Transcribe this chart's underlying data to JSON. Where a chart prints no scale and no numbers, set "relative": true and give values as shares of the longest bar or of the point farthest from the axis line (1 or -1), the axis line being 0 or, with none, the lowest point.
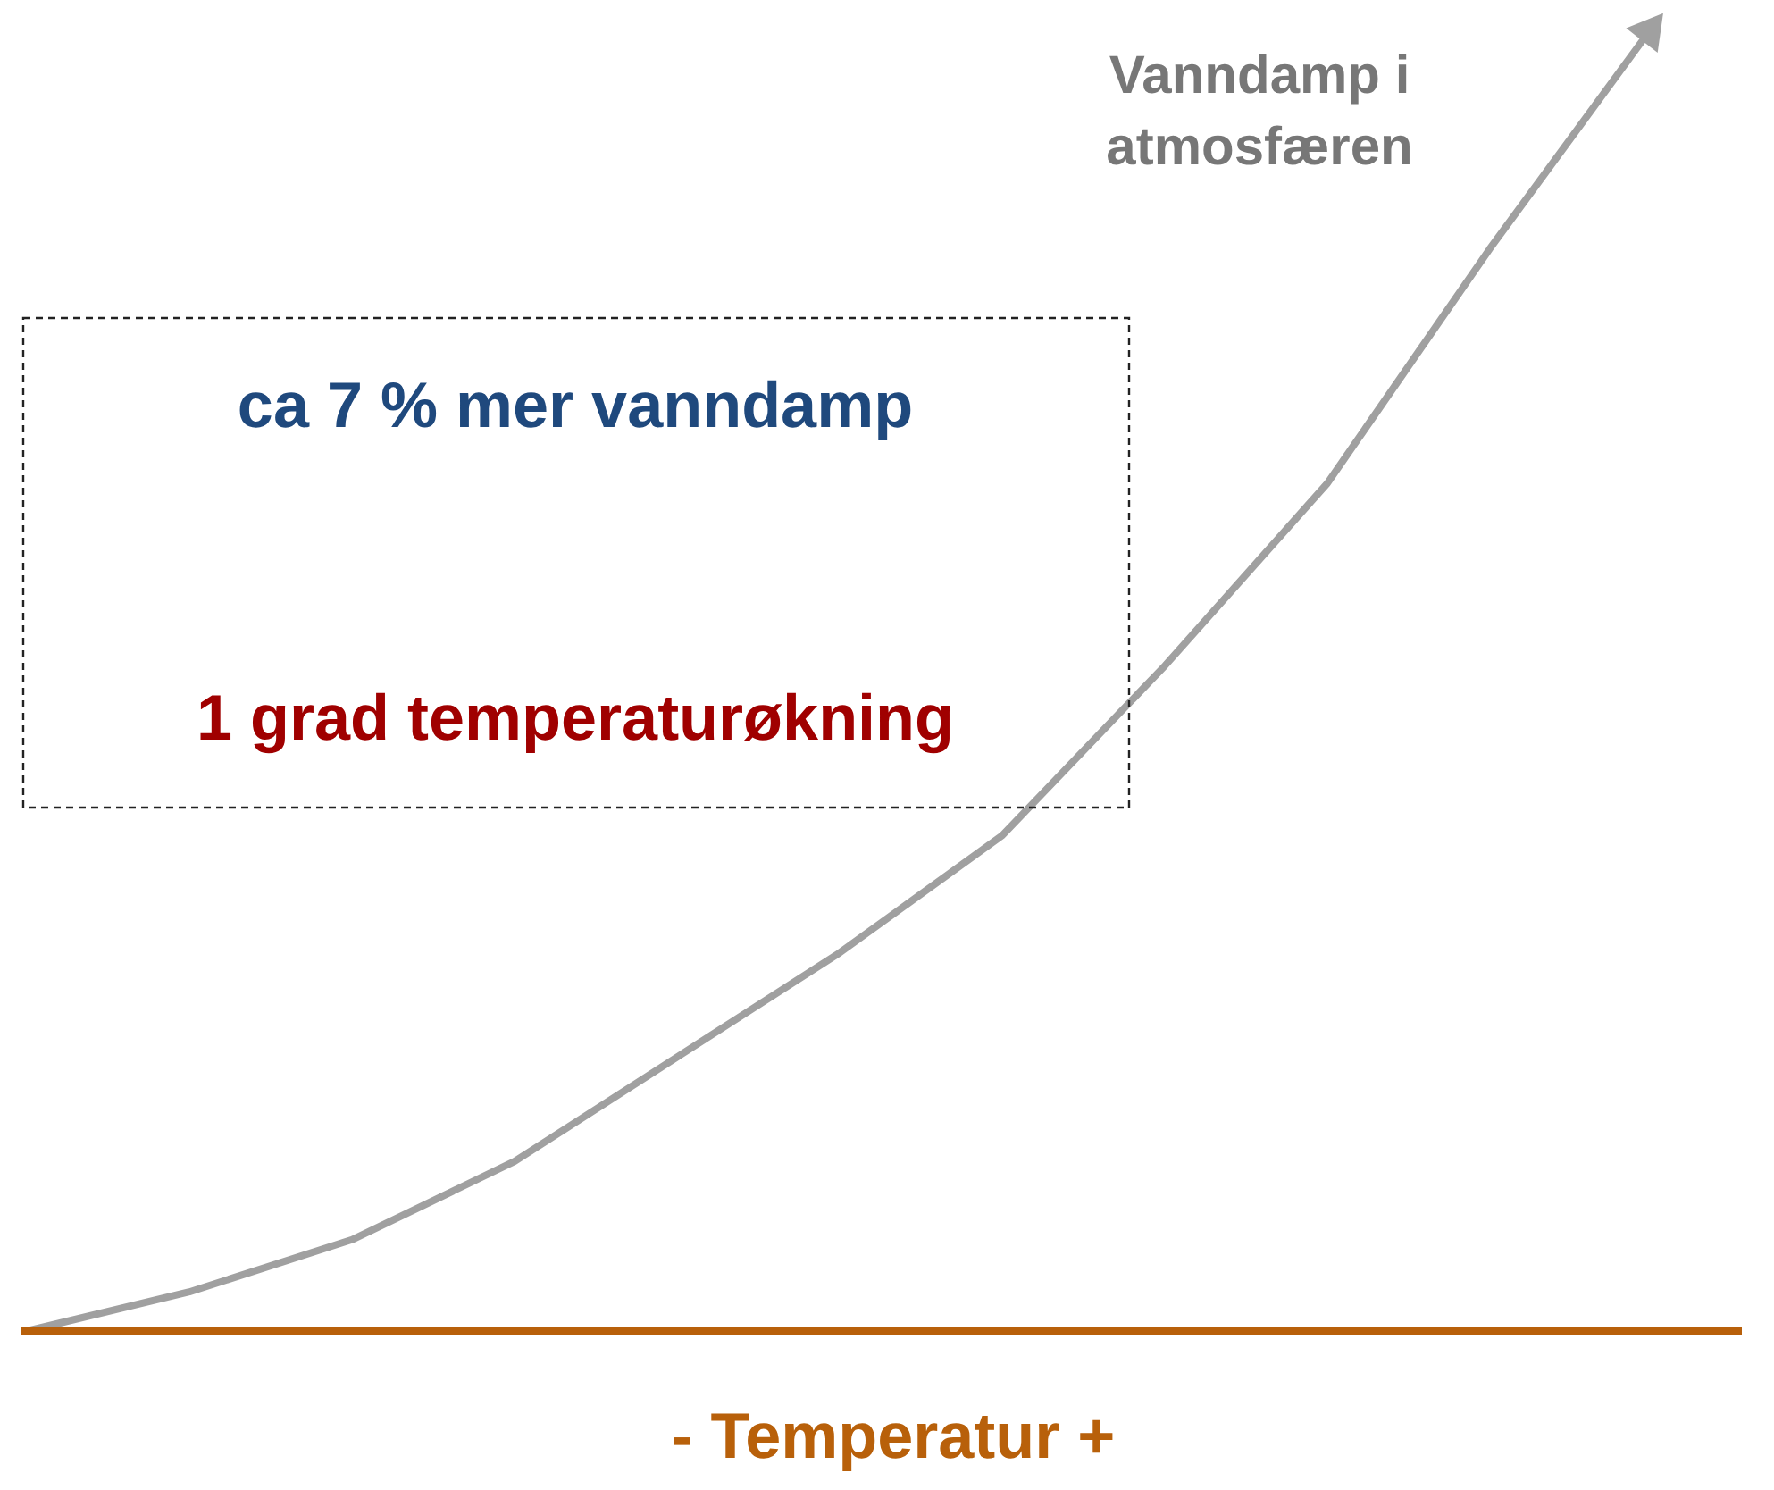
{
  "chart_data": {
    "type": "line",
    "relative": true,
    "xlabel": "- Temperatur +",
    "categories": [
      null,
      null,
      null,
      null,
      null,
      null,
      null,
      null,
      null,
      null,
      null
    ],
    "series": [
      {
        "name": "Vanndamp i\natmosfæren",
        "color": "#a0a0a0",
        "values": [
          0,
          0.03,
          0.07,
          0.13,
          0.21,
          0.29,
          0.38,
          0.51,
          0.65,
          0.83,
          1
        ]
      }
    ],
    "annotations": [
      "ca 7 % mer vanndamp",
      "1 grad temperaturøkning"
    ]
  }
}
